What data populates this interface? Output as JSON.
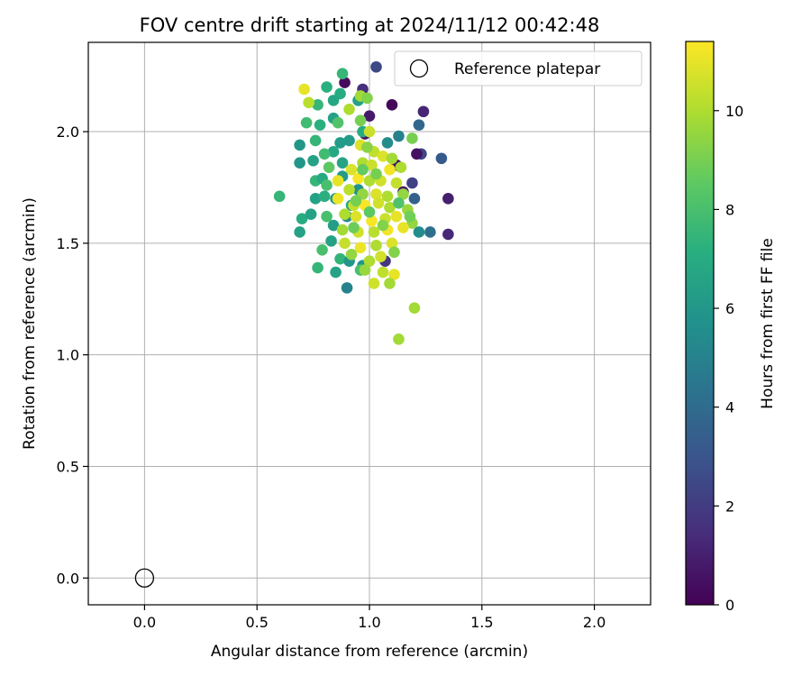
{
  "chart_data": {
    "type": "scatter",
    "title": "FOV centre drift starting at 2024/11/12 00:42:48",
    "xlabel": "Angular distance from reference (arcmin)",
    "ylabel": "Rotation from reference (arcmin)",
    "xlim": [
      -0.25,
      2.25
    ],
    "ylim": [
      -0.12,
      2.4
    ],
    "xticks": [
      0.0,
      0.5,
      1.0,
      1.5,
      2.0
    ],
    "xtick_labels": [
      "0.0",
      "0.5",
      "1.0",
      "1.5",
      "2.0"
    ],
    "yticks": [
      0.0,
      0.5,
      1.0,
      1.5,
      2.0
    ],
    "ytick_labels": [
      "0.0",
      "0.5",
      "1.0",
      "1.5",
      "2.0"
    ],
    "grid": true,
    "legend": {
      "position": "top-right",
      "entries": [
        "Reference platepar"
      ]
    },
    "reference_point": {
      "x": 0.0,
      "y": 0.0,
      "label": "Reference platepar"
    },
    "colorbar": {
      "label": "Hours from first FF file",
      "colormap": "viridis",
      "range": [
        0,
        11.4
      ],
      "ticks": [
        0,
        2,
        4,
        6,
        8,
        10
      ],
      "tick_labels": [
        "0",
        "2",
        "4",
        "6",
        "8",
        "10"
      ]
    },
    "points": [
      {
        "x": 1.03,
        "y": 2.29,
        "c": 2.5
      },
      {
        "x": 0.89,
        "y": 2.22,
        "c": 0.3
      },
      {
        "x": 0.97,
        "y": 2.19,
        "c": 1.5
      },
      {
        "x": 1.1,
        "y": 2.12,
        "c": 0.2
      },
      {
        "x": 1.24,
        "y": 2.09,
        "c": 1.2
      },
      {
        "x": 1.0,
        "y": 2.07,
        "c": 0.8
      },
      {
        "x": 1.22,
        "y": 2.03,
        "c": 3.8
      },
      {
        "x": 1.13,
        "y": 1.98,
        "c": 5.0
      },
      {
        "x": 0.98,
        "y": 1.99,
        "c": 0.6
      },
      {
        "x": 1.08,
        "y": 1.95,
        "c": 5.5
      },
      {
        "x": 1.23,
        "y": 1.9,
        "c": 2.4
      },
      {
        "x": 1.21,
        "y": 1.9,
        "c": 0.5
      },
      {
        "x": 1.32,
        "y": 1.88,
        "c": 3.2
      },
      {
        "x": 1.12,
        "y": 1.85,
        "c": 0.4
      },
      {
        "x": 1.19,
        "y": 1.77,
        "c": 2.2
      },
      {
        "x": 1.35,
        "y": 1.7,
        "c": 1.0
      },
      {
        "x": 1.35,
        "y": 1.54,
        "c": 1.3
      },
      {
        "x": 1.27,
        "y": 1.55,
        "c": 4.2
      },
      {
        "x": 1.22,
        "y": 1.55,
        "c": 5.5
      },
      {
        "x": 1.2,
        "y": 1.7,
        "c": 3.5
      },
      {
        "x": 0.9,
        "y": 1.3,
        "c": 5.0
      },
      {
        "x": 1.07,
        "y": 1.42,
        "c": 1.8
      },
      {
        "x": 0.97,
        "y": 1.4,
        "c": 5.8
      },
      {
        "x": 1.15,
        "y": 1.73,
        "c": 0.7
      },
      {
        "x": 0.88,
        "y": 2.26,
        "c": 7.5
      },
      {
        "x": 0.81,
        "y": 2.2,
        "c": 7.2
      },
      {
        "x": 0.87,
        "y": 2.17,
        "c": 7.0
      },
      {
        "x": 0.77,
        "y": 2.12,
        "c": 7.5
      },
      {
        "x": 0.84,
        "y": 2.14,
        "c": 6.8
      },
      {
        "x": 0.95,
        "y": 2.14,
        "c": 6.5
      },
      {
        "x": 0.72,
        "y": 2.04,
        "c": 7.8
      },
      {
        "x": 0.78,
        "y": 2.03,
        "c": 7.2
      },
      {
        "x": 0.84,
        "y": 2.06,
        "c": 6.5
      },
      {
        "x": 0.86,
        "y": 2.04,
        "c": 8.2
      },
      {
        "x": 0.69,
        "y": 1.94,
        "c": 6.0
      },
      {
        "x": 0.76,
        "y": 1.96,
        "c": 7.5
      },
      {
        "x": 0.87,
        "y": 1.95,
        "c": 6.2
      },
      {
        "x": 0.84,
        "y": 1.91,
        "c": 6.8
      },
      {
        "x": 0.69,
        "y": 1.86,
        "c": 6.0
      },
      {
        "x": 0.75,
        "y": 1.87,
        "c": 6.5
      },
      {
        "x": 0.8,
        "y": 1.9,
        "c": 7.8
      },
      {
        "x": 0.82,
        "y": 1.84,
        "c": 8.5
      },
      {
        "x": 0.76,
        "y": 1.78,
        "c": 7.5
      },
      {
        "x": 0.79,
        "y": 1.79,
        "c": 6.9
      },
      {
        "x": 0.88,
        "y": 1.8,
        "c": 6.2
      },
      {
        "x": 0.81,
        "y": 1.76,
        "c": 8.0
      },
      {
        "x": 0.6,
        "y": 1.71,
        "c": 7.5
      },
      {
        "x": 0.76,
        "y": 1.7,
        "c": 6.5
      },
      {
        "x": 0.8,
        "y": 1.71,
        "c": 7.2
      },
      {
        "x": 0.85,
        "y": 1.7,
        "c": 6.0
      },
      {
        "x": 0.7,
        "y": 1.61,
        "c": 7.0
      },
      {
        "x": 0.74,
        "y": 1.63,
        "c": 6.5
      },
      {
        "x": 0.81,
        "y": 1.62,
        "c": 8.0
      },
      {
        "x": 0.84,
        "y": 1.58,
        "c": 6.3
      },
      {
        "x": 0.69,
        "y": 1.55,
        "c": 6.5
      },
      {
        "x": 0.79,
        "y": 1.47,
        "c": 8.0
      },
      {
        "x": 0.83,
        "y": 1.51,
        "c": 6.5
      },
      {
        "x": 0.77,
        "y": 1.39,
        "c": 7.5
      },
      {
        "x": 0.85,
        "y": 1.37,
        "c": 6.6
      },
      {
        "x": 0.87,
        "y": 1.43,
        "c": 7.4
      },
      {
        "x": 0.91,
        "y": 1.42,
        "c": 6.0
      },
      {
        "x": 0.96,
        "y": 1.38,
        "c": 8.0
      },
      {
        "x": 0.9,
        "y": 1.62,
        "c": 5.5
      },
      {
        "x": 0.92,
        "y": 1.67,
        "c": 6.8
      },
      {
        "x": 0.95,
        "y": 1.74,
        "c": 5.8
      },
      {
        "x": 0.88,
        "y": 1.86,
        "c": 6.6
      },
      {
        "x": 0.91,
        "y": 1.96,
        "c": 6.2
      },
      {
        "x": 0.97,
        "y": 2.0,
        "c": 7.0
      },
      {
        "x": 0.71,
        "y": 2.19,
        "c": 11.0
      },
      {
        "x": 0.73,
        "y": 2.13,
        "c": 10.2
      },
      {
        "x": 0.96,
        "y": 2.16,
        "c": 9.8
      },
      {
        "x": 0.99,
        "y": 2.15,
        "c": 9.2
      },
      {
        "x": 0.91,
        "y": 2.1,
        "c": 10.0
      },
      {
        "x": 0.96,
        "y": 2.05,
        "c": 9.0
      },
      {
        "x": 1.0,
        "y": 2.0,
        "c": 10.5
      },
      {
        "x": 0.96,
        "y": 1.94,
        "c": 10.8
      },
      {
        "x": 1.02,
        "y": 1.91,
        "c": 10.3
      },
      {
        "x": 1.06,
        "y": 1.89,
        "c": 10.8
      },
      {
        "x": 1.1,
        "y": 1.88,
        "c": 9.8
      },
      {
        "x": 1.19,
        "y": 1.97,
        "c": 9.0
      },
      {
        "x": 0.97,
        "y": 1.86,
        "c": 10.0
      },
      {
        "x": 1.01,
        "y": 1.85,
        "c": 10.5
      },
      {
        "x": 0.92,
        "y": 1.83,
        "c": 10.8
      },
      {
        "x": 1.09,
        "y": 1.83,
        "c": 11.2
      },
      {
        "x": 1.14,
        "y": 1.84,
        "c": 10.0
      },
      {
        "x": 0.86,
        "y": 1.78,
        "c": 11.0
      },
      {
        "x": 0.95,
        "y": 1.79,
        "c": 11.3
      },
      {
        "x": 1.0,
        "y": 1.78,
        "c": 10.0
      },
      {
        "x": 1.05,
        "y": 1.78,
        "c": 10.6
      },
      {
        "x": 1.15,
        "y": 1.72,
        "c": 9.5
      },
      {
        "x": 0.91,
        "y": 1.74,
        "c": 10.2
      },
      {
        "x": 0.97,
        "y": 1.72,
        "c": 9.5
      },
      {
        "x": 1.03,
        "y": 1.72,
        "c": 10.8
      },
      {
        "x": 1.08,
        "y": 1.71,
        "c": 10.0
      },
      {
        "x": 0.86,
        "y": 1.7,
        "c": 11.1
      },
      {
        "x": 0.93,
        "y": 1.67,
        "c": 10.4
      },
      {
        "x": 0.98,
        "y": 1.67,
        "c": 11.3
      },
      {
        "x": 1.04,
        "y": 1.68,
        "c": 10.6
      },
      {
        "x": 1.09,
        "y": 1.66,
        "c": 10.0
      },
      {
        "x": 1.17,
        "y": 1.65,
        "c": 9.6
      },
      {
        "x": 0.89,
        "y": 1.63,
        "c": 10.0
      },
      {
        "x": 0.94,
        "y": 1.62,
        "c": 10.8
      },
      {
        "x": 1.01,
        "y": 1.6,
        "c": 11.3
      },
      {
        "x": 1.07,
        "y": 1.61,
        "c": 10.5
      },
      {
        "x": 1.12,
        "y": 1.62,
        "c": 11.0
      },
      {
        "x": 1.19,
        "y": 1.59,
        "c": 9.5
      },
      {
        "x": 0.88,
        "y": 1.56,
        "c": 9.8
      },
      {
        "x": 0.95,
        "y": 1.55,
        "c": 10.6
      },
      {
        "x": 1.02,
        "y": 1.55,
        "c": 10.2
      },
      {
        "x": 1.08,
        "y": 1.56,
        "c": 11.2
      },
      {
        "x": 1.15,
        "y": 1.57,
        "c": 11.0
      },
      {
        "x": 0.89,
        "y": 1.5,
        "c": 10.4
      },
      {
        "x": 0.96,
        "y": 1.48,
        "c": 11.1
      },
      {
        "x": 1.03,
        "y": 1.49,
        "c": 10.0
      },
      {
        "x": 1.1,
        "y": 1.5,
        "c": 10.8
      },
      {
        "x": 0.92,
        "y": 1.45,
        "c": 9.5
      },
      {
        "x": 1.0,
        "y": 1.42,
        "c": 10.0
      },
      {
        "x": 1.05,
        "y": 1.44,
        "c": 10.6
      },
      {
        "x": 1.11,
        "y": 1.46,
        "c": 9.2
      },
      {
        "x": 0.98,
        "y": 1.38,
        "c": 9.6
      },
      {
        "x": 1.06,
        "y": 1.37,
        "c": 10.3
      },
      {
        "x": 1.11,
        "y": 1.36,
        "c": 11.0
      },
      {
        "x": 1.02,
        "y": 1.32,
        "c": 10.6
      },
      {
        "x": 1.09,
        "y": 1.32,
        "c": 9.8
      },
      {
        "x": 1.2,
        "y": 1.21,
        "c": 9.8
      },
      {
        "x": 1.13,
        "y": 1.07,
        "c": 9.8
      },
      {
        "x": 0.99,
        "y": 1.93,
        "c": 9.3
      },
      {
        "x": 1.12,
        "y": 1.77,
        "c": 10.4
      },
      {
        "x": 0.94,
        "y": 1.69,
        "c": 9.0
      },
      {
        "x": 1.0,
        "y": 1.64,
        "c": 8.5
      },
      {
        "x": 1.06,
        "y": 1.58,
        "c": 9.2
      },
      {
        "x": 0.93,
        "y": 1.57,
        "c": 8.8
      },
      {
        "x": 1.13,
        "y": 1.68,
        "c": 8.2
      },
      {
        "x": 0.97,
        "y": 1.83,
        "c": 8.6
      },
      {
        "x": 1.03,
        "y": 1.81,
        "c": 9.0
      },
      {
        "x": 1.18,
        "y": 1.62,
        "c": 8.9
      }
    ]
  }
}
